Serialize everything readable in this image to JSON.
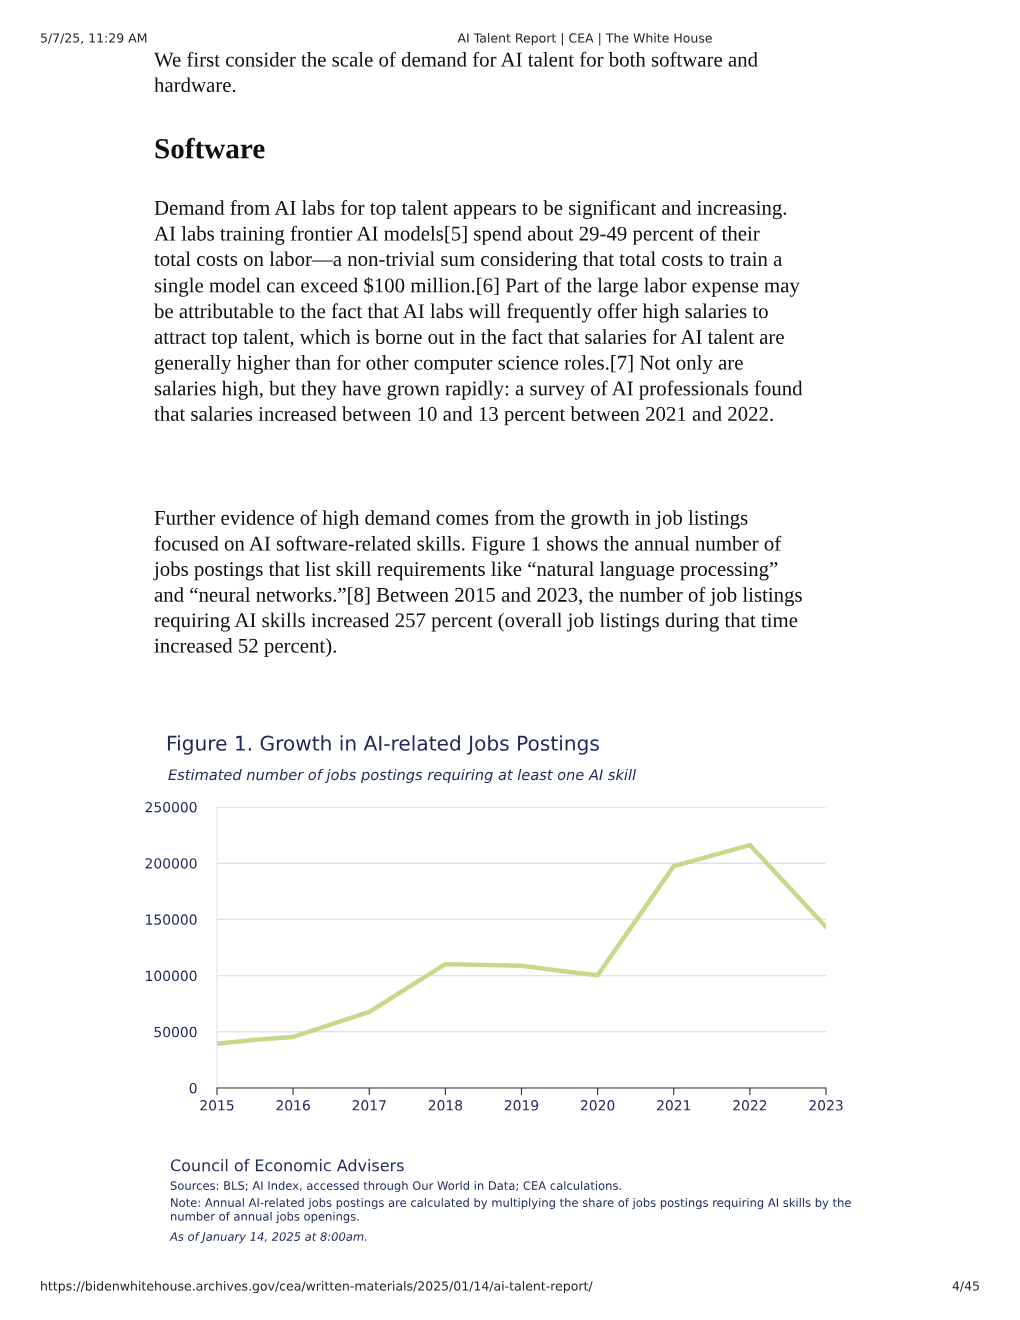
{
  "chart_data": {
    "type": "line",
    "title": "Figure 1. Growth in AI-related Jobs Postings",
    "subtitle": "Estimated number of jobs postings requiring at least one AI skill",
    "x": [
      2015,
      2015.5,
      2016,
      2017,
      2018,
      2019,
      2019.5,
      2020,
      2021,
      2022,
      2023
    ],
    "series": [
      {
        "color": "#c5d98a",
        "values": [
          39400,
          43000,
          45400,
          67700,
          110200,
          108700,
          104300,
          100300,
          197400,
          216100,
          143300
        ]
      }
    ],
    "xlim": [
      2015,
      2023
    ],
    "xticks": [
      2015,
      2016,
      2017,
      2018,
      2019,
      2020,
      2021,
      2022,
      2023
    ],
    "ylim": [
      0,
      250000
    ],
    "yticks": [
      0,
      50000,
      100000,
      150000,
      200000,
      250000
    ],
    "grid": "y",
    "marker": "none",
    "line_style": "solid",
    "annotations": [
      "5/7/25, 11:29 AM",
      "AI Talent Report | CEA | The White House",
      "We first consider the scale of demand for AI talent for both software and\nhardware.",
      "Software",
      "Demand from AI labs for top talent appears to be significant and increasing.\nAI labs training frontier AI models[5] spend about 29-49 percent of their\ntotal costs on labor—a non-trivial sum considering that total costs to train a\nsingle model can exceed $100 million.[6] Part of the large labor expense may\nbe attributable to the fact that AI labs will frequently offer high salaries to\nattract top talent, which is borne out in the fact that salaries for AI talent are\ngenerally higher than for other computer science roles.[7] Not only are\nsalaries high, but they have grown rapidly: a survey of AI professionals found\nthat salaries increased between 10 and 13 percent between 2021 and 2022.",
      "Further evidence of high demand comes from the growth in job listings\nfocused on AI software-related skills. Figure 1 shows the annual number of\njobs postings that list skill requirements like “natural language processing”\nand “neural networks.”[8] Between 2015 and 2023, the number of job listings\nrequiring AI skills increased 257 percent (overall job listings during that time\nincreased 52 percent).",
      "Council of Economic Advisers",
      "Sources: BLS; AI Index, accessed through Our World in Data; CEA calculations.",
      "Note: Annual AI-related jobs postings are calculated by multiplying the share of jobs postings requiring AI skills by the\nnumber of annual jobs openings.",
      "As of January 14, 2025 at 8:00am.",
      "https://bidenwhitehouse.archives.gov/cea/written-materials/2025/01/14/ai-talent-report/",
      "4/45"
    ]
  }
}
